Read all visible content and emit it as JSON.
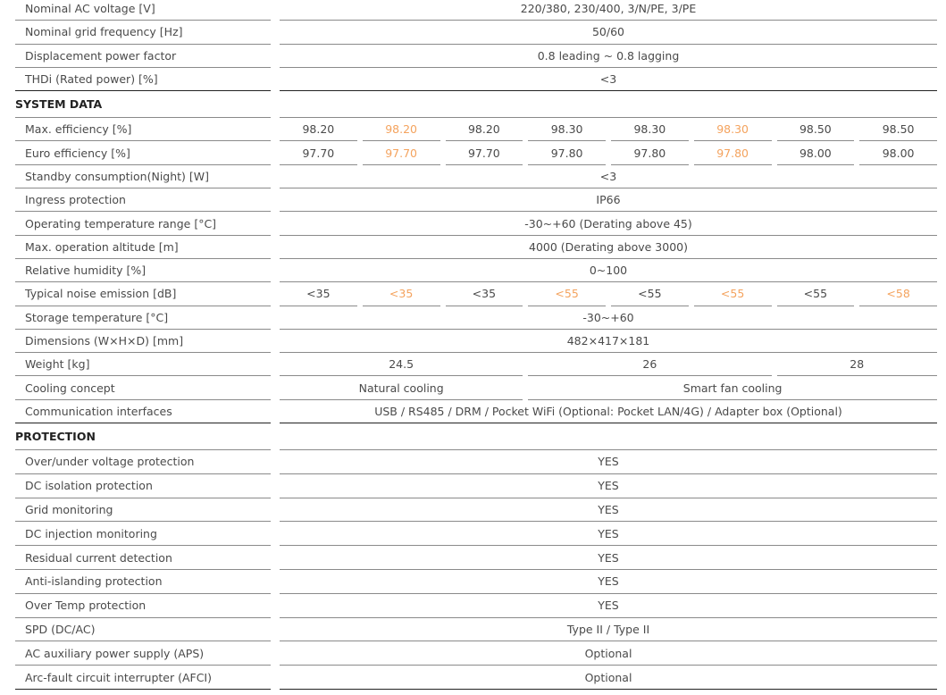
{
  "colors": {
    "text": "#4a4a4a",
    "highlight": "#f4a35e",
    "section": "#222222"
  },
  "rows": [
    {
      "label": "Nominal AC voltage [V]",
      "values": [
        {
          "t": "220/380, 230/400, 3/N/PE, 3/PE",
          "span": 8
        }
      ]
    },
    {
      "label": "Nominal grid frequency [Hz]",
      "values": [
        {
          "t": "50/60",
          "span": 8
        }
      ]
    },
    {
      "label": "Displacement power factor",
      "values": [
        {
          "t": "0.8 leading ~ 0.8 lagging",
          "span": 8
        }
      ]
    },
    {
      "label": "THDi (Rated power) [%]",
      "values": [
        {
          "t": "<3",
          "span": 8
        }
      ]
    },
    {
      "section": true,
      "label": "SYSTEM DATA",
      "values": [
        {
          "t": "",
          "span": 8
        }
      ]
    },
    {
      "label": "Max. efficiency [%]",
      "values": [
        {
          "t": "98.20",
          "span": 1
        },
        {
          "t": "98.20",
          "span": 1,
          "hl": true
        },
        {
          "t": "98.20",
          "span": 1
        },
        {
          "t": "98.30",
          "span": 1
        },
        {
          "t": "98.30",
          "span": 1
        },
        {
          "t": "98.30",
          "span": 1,
          "hl": true
        },
        {
          "t": "98.50",
          "span": 1
        },
        {
          "t": "98.50",
          "span": 1
        }
      ]
    },
    {
      "label": "Euro efficiency [%]",
      "values": [
        {
          "t": "97.70",
          "span": 1
        },
        {
          "t": "97.70",
          "span": 1,
          "hl": true
        },
        {
          "t": "97.70",
          "span": 1
        },
        {
          "t": "97.80",
          "span": 1
        },
        {
          "t": "97.80",
          "span": 1
        },
        {
          "t": "97.80",
          "span": 1,
          "hl": true
        },
        {
          "t": "98.00",
          "span": 1
        },
        {
          "t": "98.00",
          "span": 1
        }
      ]
    },
    {
      "label": "Standby consumption(Night) [W]",
      "values": [
        {
          "t": "<3",
          "span": 8
        }
      ]
    },
    {
      "label": "Ingress protection",
      "values": [
        {
          "t": "IP66",
          "span": 8
        }
      ]
    },
    {
      "label": "Operating temperature range [°C]",
      "values": [
        {
          "t": "-30~+60 (Derating above 45)",
          "span": 8
        }
      ]
    },
    {
      "label": "Max. operation altitude [m]",
      "values": [
        {
          "t": "4000 (Derating above 3000)",
          "span": 8
        }
      ]
    },
    {
      "label": "Relative humidity [%]",
      "values": [
        {
          "t": "0~100",
          "span": 8
        }
      ]
    },
    {
      "label": "Typical noise emission [dB]",
      "values": [
        {
          "t": "<35",
          "span": 1
        },
        {
          "t": "<35",
          "span": 1,
          "hl": true
        },
        {
          "t": "<35",
          "span": 1
        },
        {
          "t": "<55",
          "span": 1,
          "hl": true
        },
        {
          "t": "<55",
          "span": 1
        },
        {
          "t": "<55",
          "span": 1,
          "hl": true
        },
        {
          "t": "<55",
          "span": 1
        },
        {
          "t": "<58",
          "span": 1,
          "hl": true
        }
      ]
    },
    {
      "label": "Storage temperature [°C]",
      "values": [
        {
          "t": "-30~+60",
          "span": 8
        }
      ]
    },
    {
      "label": "Dimensions (W×H×D) [mm]",
      "values": [
        {
          "t": "482×417×181",
          "span": 8
        }
      ]
    },
    {
      "label": "Weight [kg]",
      "values": [
        {
          "t": "24.5",
          "span": 3
        },
        {
          "t": "26",
          "span": 3
        },
        {
          "t": "28",
          "span": 2
        }
      ]
    },
    {
      "label": "Cooling concept",
      "values": [
        {
          "t": "Natural cooling",
          "span": 3
        },
        {
          "t": "Smart fan cooling",
          "span": 5
        }
      ]
    },
    {
      "label": "Communication interfaces",
      "values": [
        {
          "t": "USB / RS485 / DRM / Pocket WiFi (Optional: Pocket LAN/4G) / Adapter box (Optional)",
          "span": 8
        }
      ]
    },
    {
      "section": true,
      "label": "PROTECTION",
      "values": [
        {
          "t": "",
          "span": 8
        }
      ]
    },
    {
      "label": "Over/under voltage protection",
      "values": [
        {
          "t": "YES",
          "span": 8
        }
      ]
    },
    {
      "label": "DC isolation protection",
      "values": [
        {
          "t": "YES",
          "span": 8
        }
      ]
    },
    {
      "label": "Grid monitoring",
      "values": [
        {
          "t": "YES",
          "span": 8
        }
      ]
    },
    {
      "label": "DC injection monitoring",
      "values": [
        {
          "t": "YES",
          "span": 8
        }
      ]
    },
    {
      "label": "Residual current detection",
      "values": [
        {
          "t": "YES",
          "span": 8
        }
      ]
    },
    {
      "label": "Anti-islanding protection",
      "values": [
        {
          "t": "YES",
          "span": 8
        }
      ]
    },
    {
      "label": "Over Temp protection",
      "values": [
        {
          "t": "YES",
          "span": 8
        }
      ]
    },
    {
      "label": "SPD (DC/AC)",
      "values": [
        {
          "t": "Type II / Type II",
          "span": 8
        }
      ]
    },
    {
      "label": "AC auxiliary power supply (APS)",
      "values": [
        {
          "t": "Optional",
          "span": 8
        }
      ]
    },
    {
      "label": "Arc-fault circuit interrupter (AFCI)",
      "values": [
        {
          "t": "Optional",
          "span": 8
        }
      ]
    }
  ]
}
